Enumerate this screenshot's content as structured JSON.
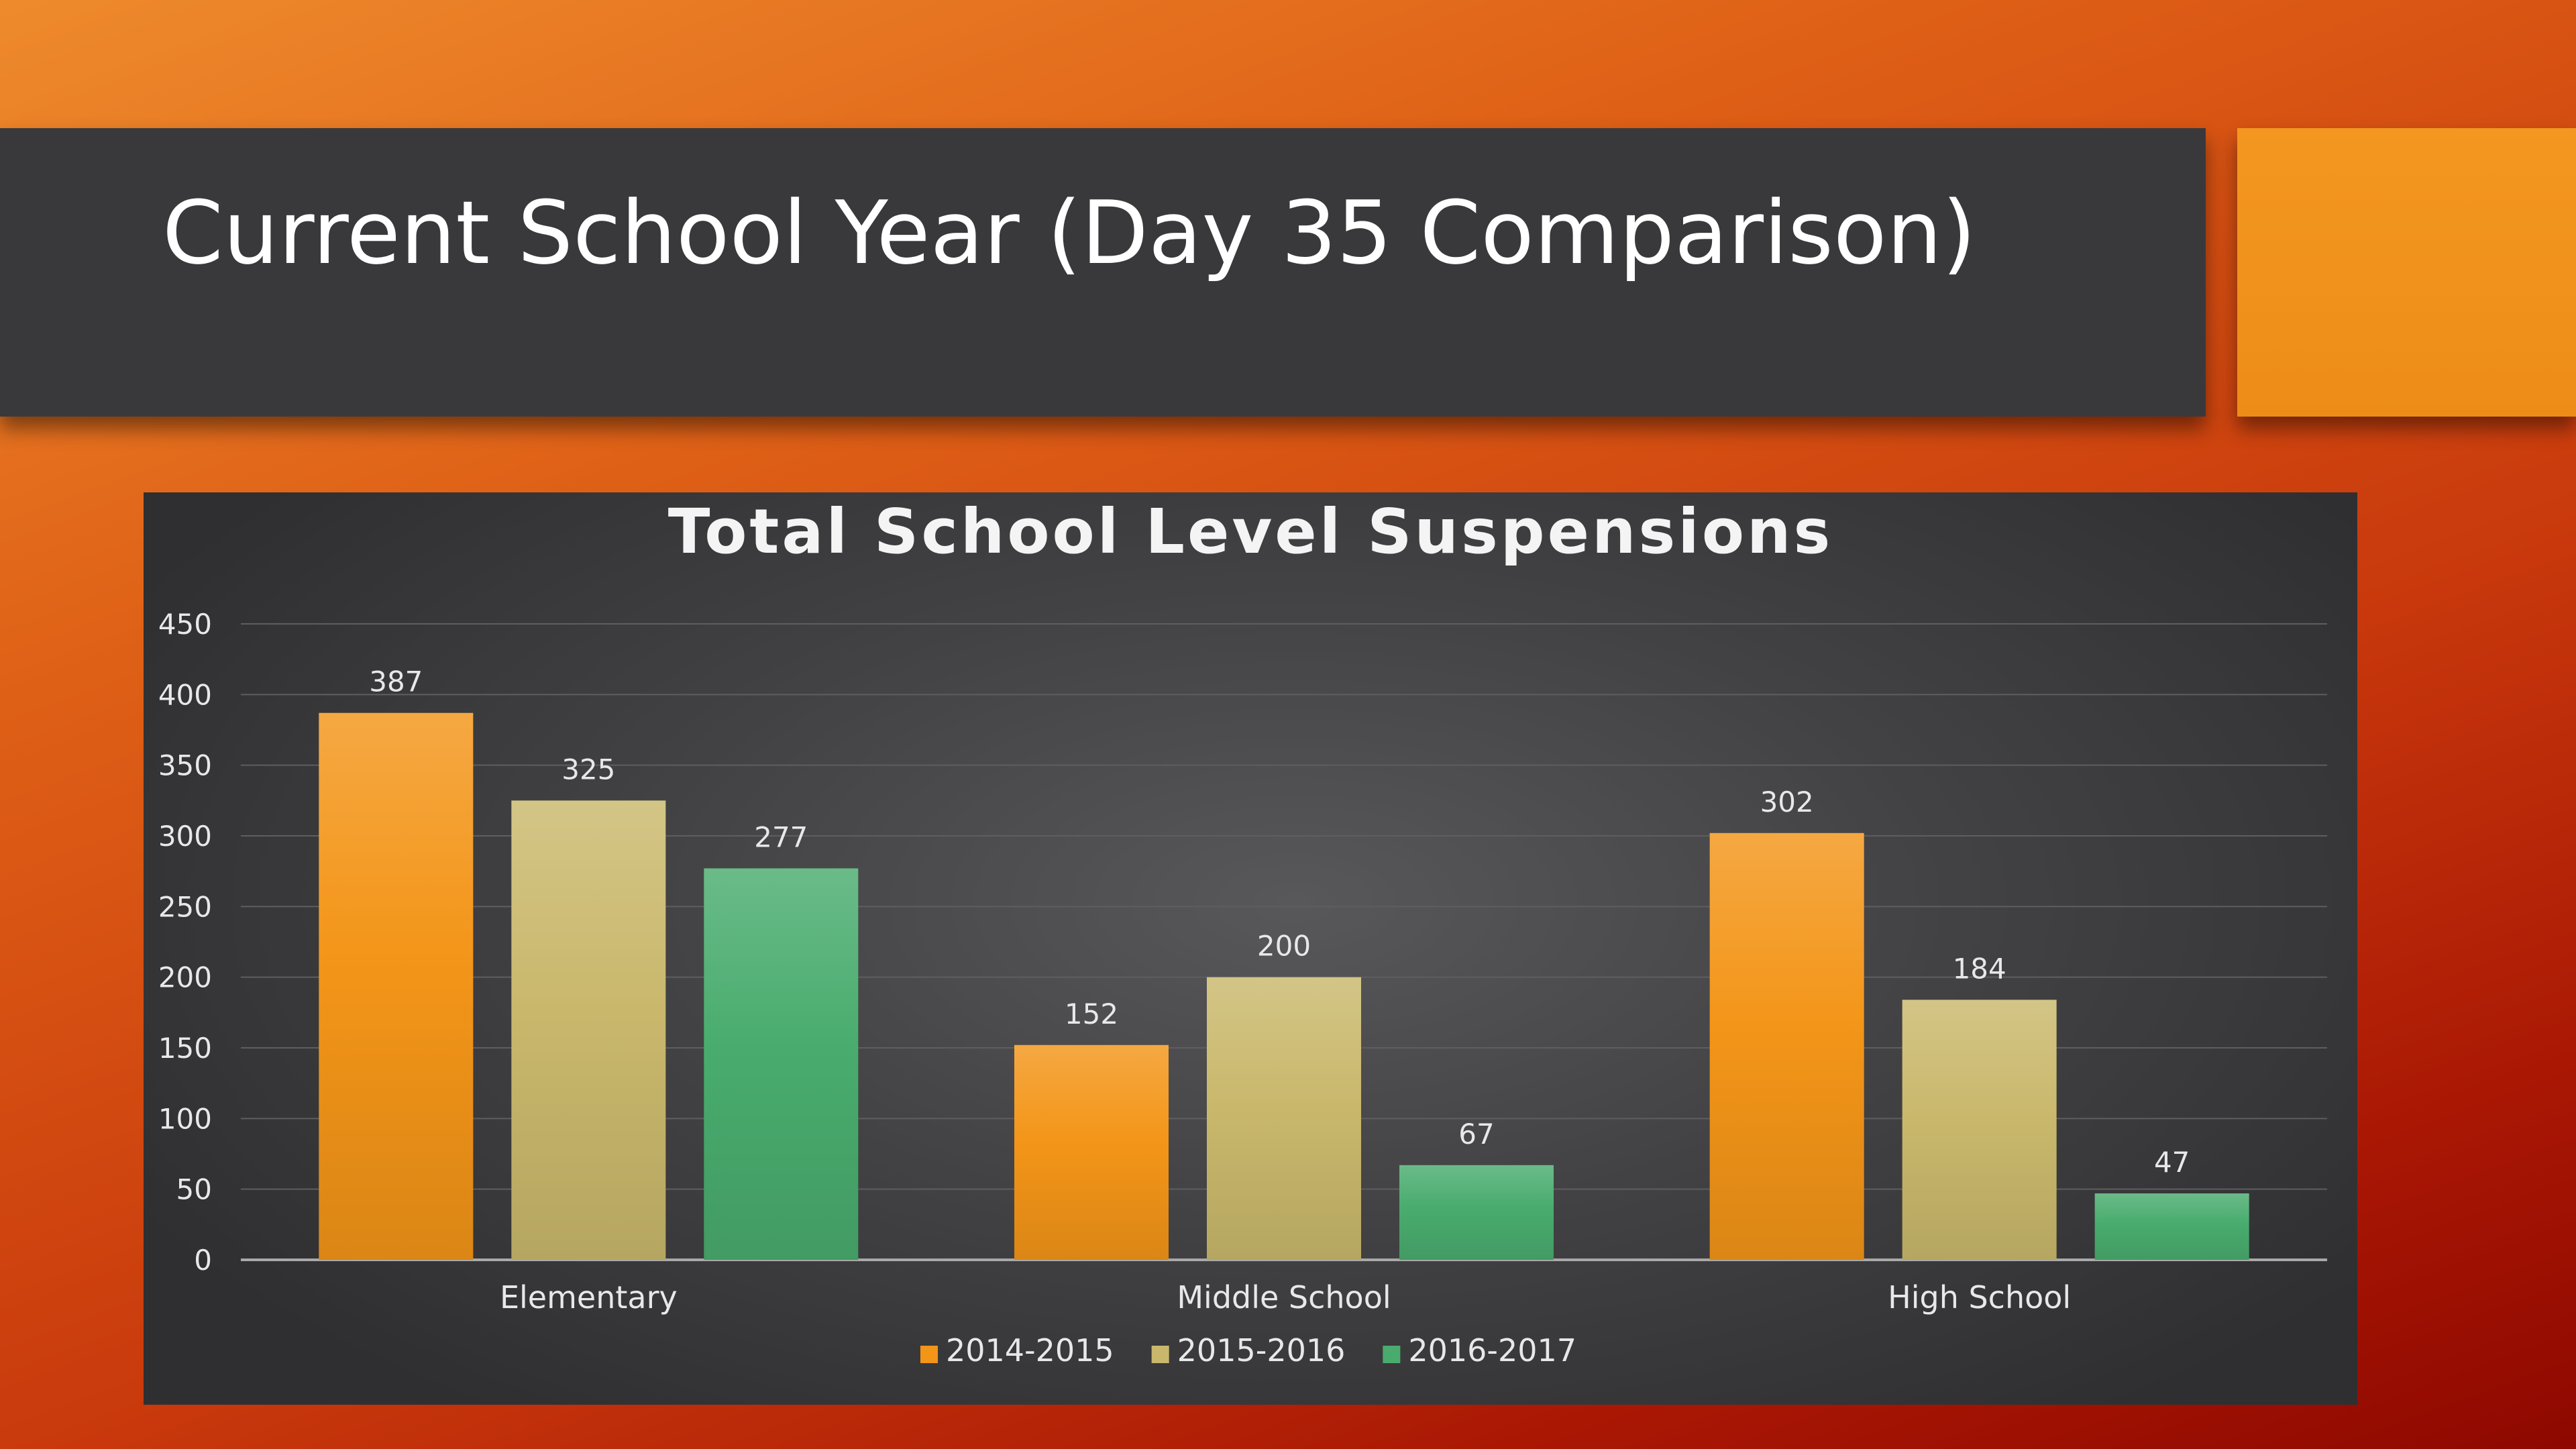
{
  "slide": {
    "title": "Current School Year (Day 35 Comparison)"
  },
  "colors": {
    "series_2014": "#f39518",
    "series_2015": "#c9b86c",
    "series_2016": "#49ac6e",
    "title_bar": "#39393c",
    "accent": "#f0901a"
  },
  "chart_data": {
    "type": "bar",
    "title": "Total School Level Suspensions",
    "xlabel": "",
    "ylabel": "",
    "categories": [
      "Elementary",
      "Middle School",
      "High School"
    ],
    "series": [
      {
        "name": "2014-2015",
        "values": [
          387,
          152,
          302
        ],
        "color": "#f39518"
      },
      {
        "name": "2015-2016",
        "values": [
          325,
          200,
          184
        ],
        "color": "#c9b86c"
      },
      {
        "name": "2016-2017",
        "values": [
          277,
          67,
          47
        ],
        "color": "#49ac6e"
      }
    ],
    "ylim": [
      0,
      450
    ],
    "yticks": [
      0,
      50,
      100,
      150,
      200,
      250,
      300,
      350,
      400,
      450
    ],
    "grid": true,
    "legend_position": "bottom",
    "data_labels": true
  }
}
